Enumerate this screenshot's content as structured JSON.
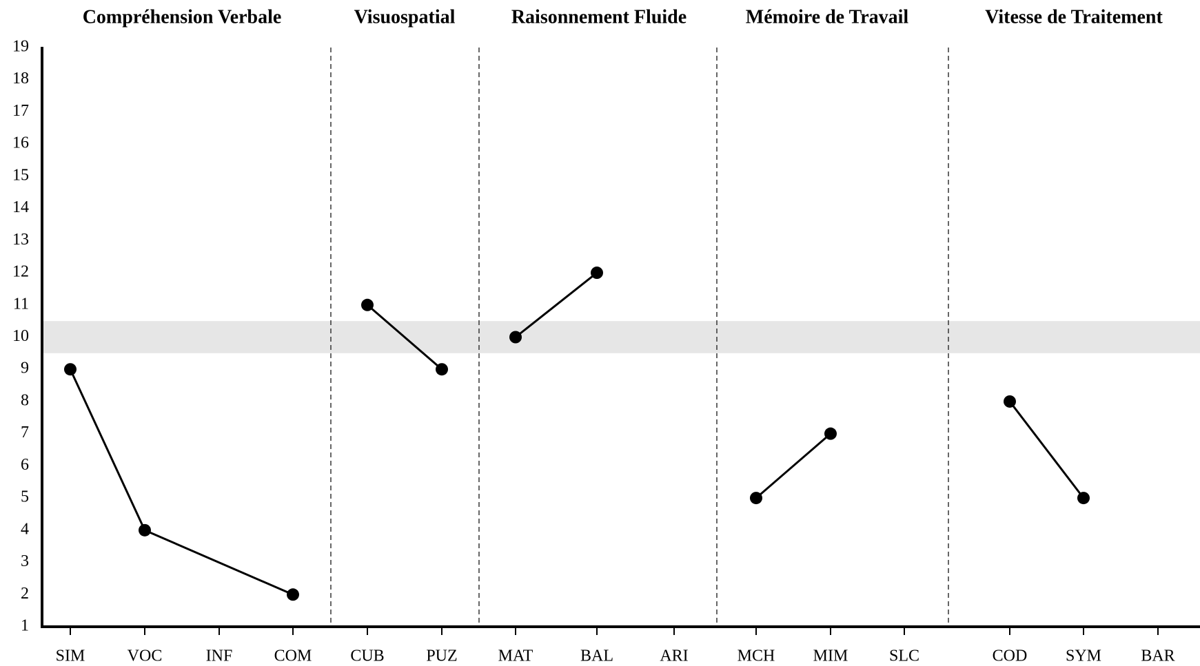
{
  "chart_data": {
    "type": "line",
    "color": "#000000",
    "groups": [
      {
        "title": "Compréhension Verbale",
        "categories": [
          "SIM",
          "VOC",
          "INF",
          "COM"
        ],
        "values": [
          9,
          4,
          null,
          2
        ]
      },
      {
        "title": "Visuospatial",
        "categories": [
          "CUB",
          "PUZ"
        ],
        "values": [
          11,
          9
        ]
      },
      {
        "title": "Raisonnement Fluide",
        "categories": [
          "MAT",
          "BAL",
          "ARI"
        ],
        "values": [
          10,
          12,
          null
        ]
      },
      {
        "title": "Mémoire de Travail",
        "categories": [
          "MCH",
          "MIM",
          "SLC"
        ],
        "values": [
          5,
          7,
          null
        ]
      },
      {
        "title": "Vitesse de Traitement",
        "categories": [
          "COD",
          "SYM",
          "BAR"
        ],
        "values": [
          8,
          5,
          null
        ]
      }
    ],
    "ylim": [
      1,
      19
    ],
    "yticks": [
      1,
      2,
      3,
      4,
      5,
      6,
      7,
      8,
      9,
      10,
      11,
      12,
      13,
      14,
      15,
      16,
      17,
      18,
      19
    ],
    "reference_band": [
      9.5,
      10.5
    ],
    "band_color": "#e6e6e6"
  }
}
